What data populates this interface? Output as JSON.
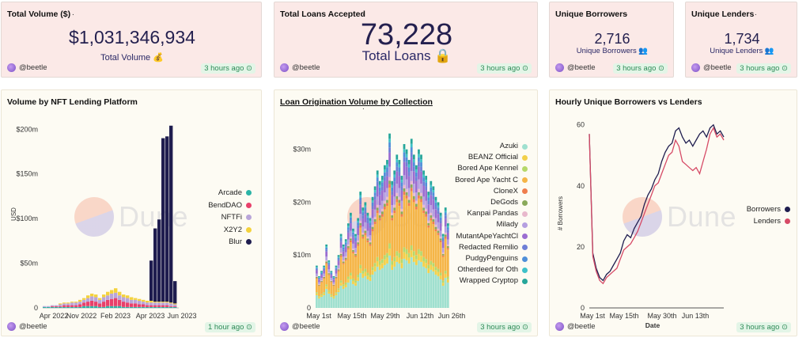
{
  "kpis": {
    "volume": {
      "title": "Total Volume ($)",
      "dot": ".",
      "value": "$1,031,346,934",
      "sub": "Total Volume 💰",
      "user": "@beetle",
      "time": "3 hours ago ⊙"
    },
    "loans": {
      "title": "Total Loans Accepted",
      "dot": ".",
      "value": "73,228",
      "sub": "Total Loans 🔒",
      "user": "@beetle",
      "time": "3 hours ago ⊙"
    },
    "borrowers": {
      "title": "Unique Borrowers",
      "dot": ".",
      "value": "2,716",
      "sub": "Unique Borrowers 👥",
      "user": "@beetle",
      "time": "3 hours ago ⊙"
    },
    "lenders": {
      "title": "Unique Lenders",
      "dot": ".",
      "value": "1,734",
      "sub": "Unique Lenders 👥",
      "user": "@beetle",
      "time": "3 hours ago ⊙"
    }
  },
  "watermark": "Dune",
  "panels": {
    "platform": {
      "title": "Volume by NFT Lending Platform",
      "user": "@beetle",
      "time": "1 hour ago ⊙"
    },
    "collection": {
      "title": "Loan Origination Volume by Collection",
      "dot": ".",
      "user": "@beetle",
      "time": "3 hours ago ⊙"
    },
    "hourly": {
      "title": "Hourly Unique Borrowers vs Lenders",
      "dot": "..",
      "user": "@beetle",
      "time": "3 hours ago ⊙"
    }
  },
  "colors": {
    "Arcade": "#2bb3a6",
    "BendDAO": "#e8406b",
    "NFTFi": "#b9a5d9",
    "X2Y2": "#f4d23c",
    "Blur": "#1f1d4f",
    "Borrowers": "#1f1d4f",
    "Lenders": "#d64a66"
  },
  "chart_data": [
    {
      "type": "bar",
      "title": "Volume by NFT Lending Platform",
      "ylabel": "USD",
      "ylim": [
        0,
        210000000
      ],
      "yticks": [
        "0",
        "$50m",
        "$100m",
        "$150m",
        "$200m"
      ],
      "ytick_values": [
        0,
        50000000,
        100000000,
        150000000,
        200000000
      ],
      "xticks": [
        "Apr 2022",
        "Nov 2022",
        "Feb 2023",
        "Apr 2023",
        "Jun 2023"
      ],
      "legend": [
        "Arcade",
        "BendDAO",
        "NFTFi",
        "X2Y2",
        "Blur"
      ],
      "series": [
        {
          "name": "Arcade",
          "values": [
            1,
            1,
            1,
            1,
            1,
            1,
            1,
            1,
            1,
            1,
            2,
            2,
            2,
            2,
            1,
            1,
            2,
            2,
            2,
            2,
            1,
            1,
            1,
            1,
            1,
            1,
            1,
            1,
            1,
            1,
            1,
            1,
            1,
            1
          ]
        },
        {
          "name": "BendDAO",
          "values": [
            0,
            0,
            1,
            1,
            1,
            2,
            2,
            2,
            2,
            3,
            4,
            5,
            6,
            5,
            4,
            6,
            7,
            8,
            9,
            7,
            6,
            5,
            4,
            4,
            3,
            3,
            2,
            2,
            2,
            2,
            2,
            2,
            1,
            1
          ]
        },
        {
          "name": "NFTFi",
          "values": [
            1,
            1,
            1,
            1,
            2,
            2,
            2,
            3,
            3,
            3,
            3,
            4,
            5,
            5,
            4,
            5,
            5,
            6,
            6,
            5,
            5,
            5,
            4,
            4,
            4,
            3,
            3,
            3,
            3,
            3,
            3,
            3,
            3,
            2
          ]
        },
        {
          "name": "X2Y2",
          "values": [
            0,
            0,
            0,
            0,
            1,
            1,
            1,
            1,
            1,
            2,
            2,
            3,
            3,
            3,
            2,
            3,
            4,
            4,
            5,
            4,
            3,
            3,
            3,
            2,
            2,
            2,
            2,
            2,
            1,
            1,
            1,
            1,
            1,
            1
          ]
        },
        {
          "name": "Blur",
          "values": [
            0,
            0,
            0,
            0,
            0,
            0,
            0,
            0,
            0,
            0,
            0,
            0,
            0,
            0,
            0,
            0,
            0,
            0,
            0,
            0,
            0,
            0,
            0,
            0,
            0,
            0,
            0,
            45,
            82,
            92,
            183,
            185,
            198,
            25
          ]
        }
      ]
    },
    {
      "type": "bar",
      "title": "Loan Origination Volume by Collection",
      "ylim": [
        0,
        34000000
      ],
      "yticks": [
        "0",
        "$10m",
        "$20m",
        "$30m"
      ],
      "ytick_values": [
        0,
        10000000,
        20000000,
        30000000
      ],
      "xticks": [
        "May 1st",
        "May 15th",
        "May 29th",
        "Jun 12th",
        "Jun 26th"
      ],
      "legend": [
        "Azuki",
        "BEANZ Official",
        "Bored Ape Kennel",
        "Bored Ape Yacht C",
        "CloneX",
        "DeGods",
        "Kanpai Pandas",
        "Milady",
        "MutantApeYachtCl",
        "Redacted Remilio",
        "PudgyPenguins",
        "Otherdeed for Oth",
        "Wrapped Cryptop"
      ],
      "legend_colors": [
        "#9fe0cf",
        "#f2d04a",
        "#b6d86a",
        "#f5b547",
        "#ef7d4d",
        "#8aa95a",
        "#e8b8cc",
        "#b59fe0",
        "#9b6dd1",
        "#6f7fd6",
        "#4f8fd9",
        "#3ec1c9",
        "#26a69a"
      ],
      "totals": [
        8,
        6,
        7,
        8,
        12,
        9,
        7,
        6,
        8,
        10,
        14,
        12,
        13,
        16,
        18,
        15,
        14,
        17,
        22,
        19,
        20,
        18,
        17,
        21,
        23,
        26,
        24,
        25,
        27,
        28,
        33,
        24,
        26,
        29,
        28,
        25,
        31,
        30,
        28,
        32,
        29,
        27,
        30,
        29,
        26,
        25,
        22,
        24,
        23,
        21,
        20,
        18,
        14,
        19,
        16
      ]
    },
    {
      "type": "line",
      "title": "Hourly Unique Borrowers vs Lenders",
      "xlabel": "Date",
      "ylabel": "# Borrowers",
      "ylim": [
        0,
        62
      ],
      "yticks": [
        0,
        20,
        40,
        60
      ],
      "xticks": [
        "May 1st",
        "May 15th",
        "May 30th",
        "Jun 13th"
      ],
      "series": [
        {
          "name": "Borrowers",
          "values": [
            57,
            18,
            13,
            10,
            9,
            11,
            12,
            14,
            16,
            18,
            22,
            24,
            23,
            26,
            28,
            30,
            34,
            37,
            39,
            42,
            44,
            48,
            51,
            53,
            54,
            58,
            59,
            56,
            54,
            55,
            53,
            55,
            57,
            58,
            56,
            59,
            60,
            57,
            58,
            56
          ]
        },
        {
          "name": "Lenders",
          "values": [
            57,
            17,
            12,
            9,
            8,
            10,
            11,
            12,
            13,
            16,
            19,
            20,
            21,
            23,
            25,
            28,
            31,
            34,
            37,
            40,
            41,
            44,
            47,
            50,
            51,
            55,
            53,
            48,
            47,
            46,
            45,
            46,
            44,
            48,
            52,
            57,
            59,
            56,
            57,
            55
          ]
        }
      ]
    }
  ]
}
